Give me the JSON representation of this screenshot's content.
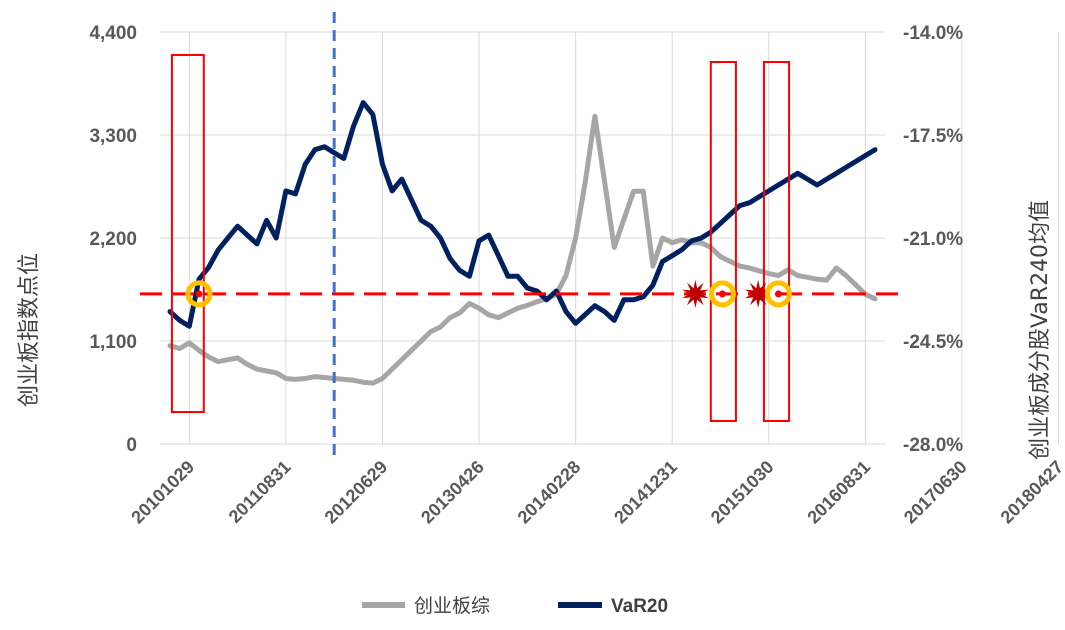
{
  "chart_data": {
    "type": "line",
    "xlabel": "",
    "ylabel_left": "创业板指数点位",
    "ylabel_right": "创业板成分股VaR240均值",
    "y_left": {
      "min": 0,
      "max": 4400,
      "ticks": [
        "0",
        "1,100",
        "2,200",
        "3,300",
        "4,400"
      ]
    },
    "y_right": {
      "min": -28.0,
      "max": -14.0,
      "ticks": [
        "-28.0%",
        "-24.5%",
        "-21.0%",
        "-17.5%",
        "-14.0%"
      ]
    },
    "x_tick_labels": [
      "20101029",
      "20110831",
      "20120629",
      "20130426",
      "20140228",
      "20141231",
      "20151030",
      "20160831",
      "20170630",
      "20180427"
    ],
    "x_tick_positions": [
      2,
      12,
      22,
      32,
      42,
      52,
      62,
      72,
      82,
      92
    ],
    "grid": true,
    "legend_position": "bottom",
    "series": [
      {
        "name": "创业板综",
        "axis": "left",
        "color": "#a6a6a6",
        "values": [
          1050,
          1020,
          1080,
          1000,
          930,
          880,
          900,
          920,
          850,
          800,
          780,
          760,
          700,
          690,
          700,
          720,
          710,
          700,
          690,
          680,
          660,
          650,
          700,
          800,
          900,
          1000,
          1100,
          1200,
          1250,
          1350,
          1400,
          1500,
          1450,
          1380,
          1350,
          1400,
          1450,
          1480,
          1520,
          1550,
          1600,
          1800,
          2200,
          2800,
          3500,
          2800,
          2100,
          2400,
          2700,
          2700,
          1900,
          2200,
          2150,
          2180,
          2150,
          2150,
          2100,
          2000,
          1950,
          1900,
          1880,
          1850,
          1820,
          1800,
          1860,
          1800,
          1780,
          1760,
          1750,
          1880,
          1800,
          1700,
          1600,
          1550
        ]
      },
      {
        "name": "VaR20",
        "axis": "right",
        "color": "#002060",
        "values": [
          -23.5,
          -23.8,
          -24.0,
          -22.4,
          -22.0,
          -21.4,
          -21.0,
          -20.6,
          -20.9,
          -21.2,
          -20.4,
          -21.0,
          -19.4,
          -19.5,
          -18.5,
          -18.0,
          -17.9,
          -18.1,
          -18.3,
          -17.2,
          -16.4,
          -16.8,
          -18.5,
          -19.4,
          -19.0,
          -19.7,
          -20.4,
          -20.6,
          -21.0,
          -21.7,
          -22.1,
          -22.3,
          -21.1,
          -20.9,
          -21.6,
          -22.3,
          -22.3,
          -22.7,
          -22.8,
          -23.1,
          -22.8,
          -23.5,
          -23.9,
          -23.6,
          -23.3,
          -23.5,
          -23.8,
          -23.1,
          -23.1,
          -23.0,
          -22.6,
          -21.8,
          -21.6,
          -21.4,
          -21.1,
          -21.0,
          -20.8,
          -20.5,
          -20.2,
          -19.9,
          -19.8,
          -19.6,
          -19.4,
          -19.2,
          -19.0,
          -18.8,
          -19.0,
          -19.2,
          -19.0,
          -18.8,
          -18.6,
          -18.4,
          -18.2,
          -18.0
        ]
      }
    ],
    "annotations": {
      "red_dashed_level_right": -22.9,
      "blue_dashed_vertical_x": 17,
      "boxes_x_ranges": [
        [
          0.2,
          3.5
        ],
        [
          56.0,
          58.6
        ],
        [
          61.5,
          64.1
        ]
      ],
      "circle_points_x": [
        3,
        57.2,
        63.0
      ],
      "star_points_x": [
        54.4,
        60.9
      ]
    }
  }
}
